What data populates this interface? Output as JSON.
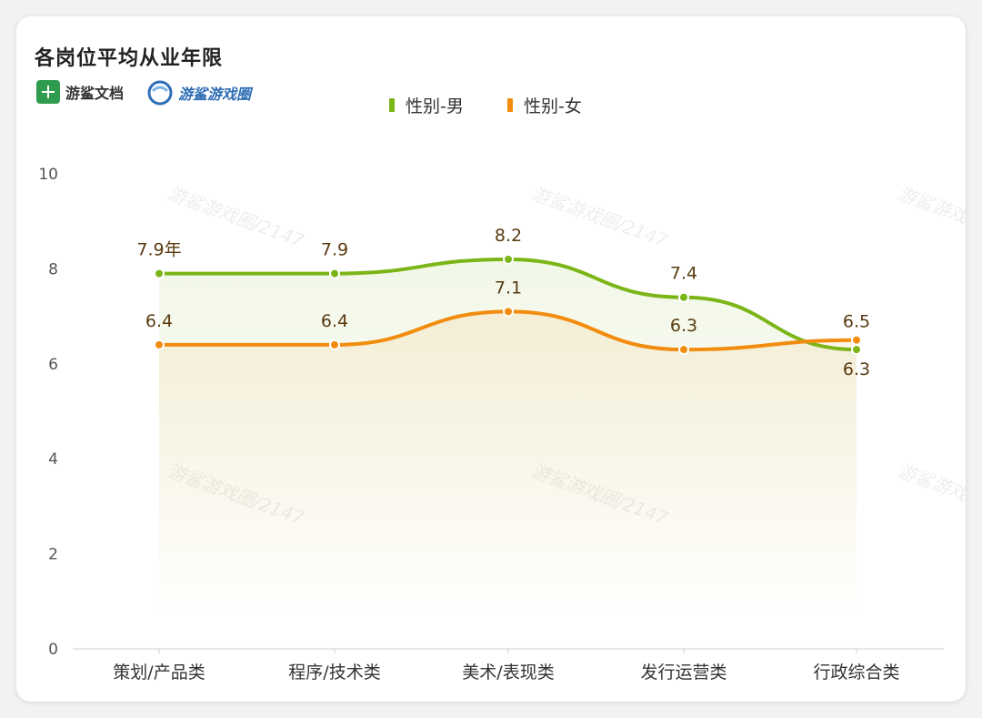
{
  "header": {
    "title": "各岗位平均从业年限",
    "brand1": "游鲨文档",
    "brand2": "游鲨游戏圈"
  },
  "watermark": "游鲨游戏圈/2147",
  "colors": {
    "male": "#7cb518",
    "female": "#f28c0f"
  },
  "chart_data": {
    "type": "line",
    "title": "各岗位平均从业年限",
    "categories": [
      "策划/产品类",
      "程序/技术类",
      "美术/表现类",
      "发行运营类",
      "行政综合类"
    ],
    "series": [
      {
        "name": "性别-男",
        "values": [
          7.9,
          7.9,
          8.2,
          7.4,
          6.3
        ],
        "labels": [
          "7.9年",
          "7.9",
          "8.2",
          "7.4",
          "6.3"
        ]
      },
      {
        "name": "性别-女",
        "values": [
          6.4,
          6.4,
          7.1,
          6.3,
          6.5
        ],
        "labels": [
          "6.4",
          "6.4",
          "7.1",
          "6.3",
          "6.5"
        ]
      }
    ],
    "ylim": [
      0,
      10
    ],
    "yticks": [
      "0",
      "2",
      "4",
      "6",
      "8",
      "10"
    ],
    "legend": "top-center",
    "smooth": true,
    "area_fill": true,
    "grid": false
  }
}
